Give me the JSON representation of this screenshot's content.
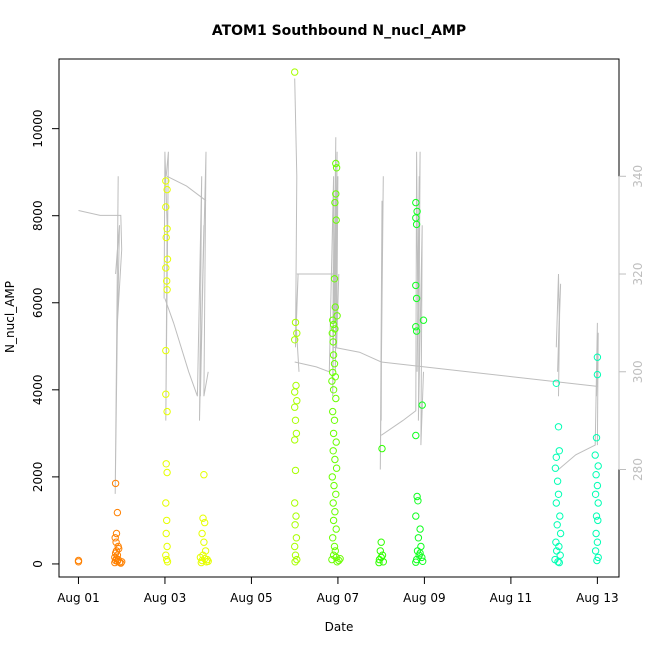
{
  "chart_data": {
    "type": "scatter",
    "title": "ATOM1 Southbound N_nucl_AMP",
    "xlabel": "Date",
    "ylabel": "N_nucl_AMP",
    "x_ticks": [
      "Aug 01",
      "Aug 03",
      "Aug 05",
      "Aug 07",
      "Aug 09",
      "Aug 11",
      "Aug 13"
    ],
    "x_tick_values": [
      1,
      3,
      5,
      7,
      9,
      11,
      13
    ],
    "xlim": [
      0.55,
      13.5
    ],
    "y_ticks": [
      0,
      2000,
      4000,
      6000,
      8000,
      10000
    ],
    "ylim": [
      -300,
      11600
    ],
    "y2_ticks": [
      280,
      300,
      320,
      340
    ],
    "y2lim": [
      258,
      364
    ],
    "y2_color": "#bebebe",
    "grid": false,
    "legend": "none",
    "series": [
      {
        "color": "#ff8000",
        "values": [
          [
            1.0,
            80
          ],
          [
            1.0,
            50
          ],
          [
            1.86,
            1850
          ],
          [
            1.9,
            1180
          ],
          [
            1.88,
            700
          ],
          [
            1.85,
            600
          ],
          [
            1.92,
            400
          ],
          [
            1.88,
            300
          ],
          [
            1.86,
            250
          ],
          [
            1.9,
            200
          ],
          [
            1.84,
            150
          ],
          [
            1.88,
            120
          ],
          [
            1.92,
            100
          ],
          [
            1.86,
            80
          ],
          [
            1.9,
            60
          ],
          [
            1.95,
            40
          ],
          [
            1.84,
            30
          ],
          [
            1.98,
            20
          ],
          [
            2.0,
            50
          ],
          [
            1.87,
            500
          ],
          [
            1.93,
            350
          ]
        ]
      },
      {
        "color": "#e6ff00",
        "values": [
          [
            3.02,
            8800
          ],
          [
            3.05,
            8600
          ],
          [
            3.02,
            8200
          ],
          [
            3.05,
            7700
          ],
          [
            3.03,
            7500
          ],
          [
            3.06,
            7000
          ],
          [
            3.02,
            6800
          ],
          [
            3.04,
            6500
          ],
          [
            3.05,
            6300
          ],
          [
            3.02,
            4900
          ],
          [
            3.02,
            3900
          ],
          [
            3.05,
            3500
          ],
          [
            3.03,
            2300
          ],
          [
            3.05,
            2100
          ],
          [
            3.02,
            1400
          ],
          [
            3.04,
            1000
          ],
          [
            3.03,
            700
          ],
          [
            3.05,
            400
          ],
          [
            3.02,
            200
          ],
          [
            3.04,
            100
          ],
          [
            3.06,
            50
          ],
          [
            3.9,
            2050
          ],
          [
            3.88,
            1050
          ],
          [
            3.92,
            950
          ],
          [
            3.86,
            700
          ],
          [
            3.9,
            500
          ],
          [
            3.94,
            300
          ],
          [
            3.88,
            200
          ],
          [
            3.92,
            120
          ],
          [
            3.86,
            80
          ],
          [
            3.96,
            50
          ],
          [
            3.84,
            30
          ],
          [
            3.98,
            100
          ],
          [
            3.82,
            150
          ],
          [
            4.0,
            60
          ]
        ]
      },
      {
        "color": "#a8ff00",
        "values": [
          [
            6.0,
            11300
          ],
          [
            6.02,
            5550
          ],
          [
            6.0,
            5150
          ],
          [
            6.05,
            5300
          ],
          [
            6.03,
            4100
          ],
          [
            6.0,
            3950
          ],
          [
            6.05,
            3750
          ],
          [
            6.0,
            3600
          ],
          [
            6.02,
            3300
          ],
          [
            6.04,
            3000
          ],
          [
            6.0,
            2850
          ],
          [
            6.02,
            2150
          ],
          [
            6.0,
            1400
          ],
          [
            6.03,
            1100
          ],
          [
            6.01,
            900
          ],
          [
            6.04,
            600
          ],
          [
            6.0,
            400
          ],
          [
            6.02,
            200
          ],
          [
            6.05,
            100
          ],
          [
            6.01,
            50
          ]
        ]
      },
      {
        "color": "#6aff00",
        "values": [
          [
            6.95,
            9200
          ],
          [
            6.97,
            9100
          ],
          [
            6.95,
            8500
          ],
          [
            6.93,
            8300
          ],
          [
            6.96,
            7900
          ],
          [
            6.92,
            6550
          ],
          [
            6.94,
            5900
          ],
          [
            6.98,
            5700
          ],
          [
            6.88,
            5600
          ],
          [
            6.9,
            5500
          ],
          [
            6.93,
            5400
          ],
          [
            6.87,
            5300
          ],
          [
            6.89,
            5100
          ],
          [
            6.9,
            4800
          ],
          [
            6.92,
            4600
          ],
          [
            6.88,
            4400
          ],
          [
            6.94,
            4300
          ],
          [
            6.86,
            4200
          ],
          [
            6.9,
            4000
          ],
          [
            6.95,
            3800
          ],
          [
            6.88,
            3500
          ],
          [
            6.92,
            3300
          ],
          [
            6.9,
            3000
          ],
          [
            6.96,
            2800
          ],
          [
            6.89,
            2600
          ],
          [
            6.93,
            2400
          ],
          [
            6.97,
            2200
          ],
          [
            6.87,
            2000
          ],
          [
            6.91,
            1800
          ],
          [
            6.95,
            1600
          ],
          [
            6.89,
            1400
          ],
          [
            6.93,
            1200
          ],
          [
            6.9,
            1000
          ],
          [
            6.96,
            800
          ],
          [
            6.88,
            600
          ],
          [
            6.92,
            400
          ],
          [
            6.94,
            300
          ],
          [
            6.9,
            200
          ],
          [
            6.96,
            150
          ],
          [
            6.86,
            100
          ],
          [
            6.98,
            50
          ],
          [
            7.02,
            80
          ],
          [
            7.05,
            120
          ]
        ]
      },
      {
        "color": "#30ff00",
        "values": [
          [
            8.02,
            2650
          ],
          [
            8.0,
            500
          ],
          [
            7.98,
            300
          ],
          [
            8.03,
            200
          ],
          [
            7.96,
            100
          ],
          [
            8.05,
            50
          ],
          [
            7.95,
            30
          ],
          [
            8.0,
            150
          ]
        ]
      },
      {
        "color": "#10ff20",
        "values": [
          [
            8.8,
            8300
          ],
          [
            8.83,
            8100
          ],
          [
            8.8,
            7950
          ],
          [
            8.82,
            7800
          ],
          [
            8.8,
            6400
          ],
          [
            8.82,
            6100
          ],
          [
            8.98,
            5600
          ],
          [
            8.8,
            5450
          ],
          [
            8.82,
            5350
          ],
          [
            8.95,
            3650
          ],
          [
            8.8,
            2950
          ],
          [
            8.83,
            1550
          ],
          [
            8.85,
            1450
          ],
          [
            8.8,
            1100
          ],
          [
            8.9,
            800
          ],
          [
            8.86,
            600
          ],
          [
            8.92,
            400
          ],
          [
            8.84,
            300
          ],
          [
            8.88,
            200
          ],
          [
            8.94,
            150
          ],
          [
            8.82,
            100
          ],
          [
            8.96,
            60
          ],
          [
            8.8,
            40
          ],
          [
            8.9,
            250
          ]
        ]
      },
      {
        "color": "#00ffb4",
        "values": [
          [
            12.05,
            4150
          ],
          [
            12.1,
            3150
          ],
          [
            12.12,
            2600
          ],
          [
            12.05,
            2450
          ],
          [
            12.03,
            2200
          ],
          [
            12.08,
            1900
          ],
          [
            12.1,
            1600
          ],
          [
            12.05,
            1400
          ],
          [
            12.13,
            1100
          ],
          [
            12.07,
            900
          ],
          [
            12.15,
            700
          ],
          [
            12.04,
            500
          ],
          [
            12.11,
            400
          ],
          [
            12.06,
            300
          ],
          [
            12.14,
            200
          ],
          [
            12.02,
            100
          ],
          [
            12.09,
            50
          ],
          [
            12.12,
            30
          ],
          [
            13.0,
            4750
          ],
          [
            13.0,
            4350
          ],
          [
            12.98,
            2900
          ],
          [
            12.95,
            2500
          ],
          [
            13.02,
            2250
          ],
          [
            12.97,
            2050
          ],
          [
            13.0,
            1800
          ],
          [
            12.96,
            1600
          ],
          [
            13.02,
            1400
          ],
          [
            12.98,
            1100
          ],
          [
            13.01,
            1000
          ],
          [
            12.97,
            700
          ],
          [
            13.0,
            500
          ],
          [
            12.96,
            300
          ],
          [
            13.02,
            150
          ],
          [
            12.99,
            80
          ]
        ]
      }
    ],
    "secondary_line": {
      "color": "#bebebe",
      "axis": "right",
      "segments": [
        [
          [
            1.0,
            333
          ],
          [
            1.5,
            332
          ],
          [
            1.98,
            332
          ],
          [
            2.0,
            325
          ],
          [
            1.9,
            310
          ],
          [
            1.85,
            275
          ],
          [
            1.92,
            340
          ],
          [
            1.88,
            300
          ],
          [
            1.95,
            330
          ],
          [
            1.86,
            320
          ],
          [
            1.9,
            325
          ]
        ],
        [
          [
            2.98,
            315
          ],
          [
            3.0,
            345
          ],
          [
            3.05,
            330
          ],
          [
            3.02,
            290
          ],
          [
            3.08,
            345
          ],
          [
            3.03,
            340
          ]
        ],
        [
          [
            3.0,
            315
          ],
          [
            3.2,
            310
          ],
          [
            3.55,
            300
          ],
          [
            3.75,
            295
          ],
          [
            3.85,
            340
          ],
          [
            3.8,
            290
          ],
          [
            3.9,
            330
          ],
          [
            3.82,
            295
          ],
          [
            3.88,
            320
          ],
          [
            3.95,
            345
          ],
          [
            3.9,
            295
          ],
          [
            4.0,
            300
          ]
        ],
        [
          [
            3.05,
            340
          ],
          [
            3.5,
            338
          ],
          [
            3.95,
            335
          ]
        ],
        [
          [
            6.0,
            360
          ],
          [
            6.05,
            340
          ],
          [
            6.02,
            305
          ],
          [
            6.08,
            320
          ],
          [
            6.03,
            310
          ],
          [
            6.1,
            300
          ]
        ],
        [
          [
            6.0,
            302
          ],
          [
            6.5,
            301
          ],
          [
            6.8,
            300
          ],
          [
            6.85,
            320
          ],
          [
            6.9,
            340
          ],
          [
            6.88,
            295
          ],
          [
            6.95,
            348
          ],
          [
            6.92,
            310
          ],
          [
            6.98,
            345
          ],
          [
            6.94,
            300
          ],
          [
            7.0,
            340
          ],
          [
            6.97,
            305
          ],
          [
            7.02,
            320
          ]
        ],
        [
          [
            6.05,
            320
          ],
          [
            6.9,
            320
          ]
        ],
        [
          [
            6.9,
            305
          ],
          [
            7.5,
            304
          ],
          [
            8.0,
            302
          ],
          [
            8.05,
            340
          ],
          [
            7.98,
            280
          ],
          [
            8.02,
            335
          ],
          [
            8.0,
            290
          ]
        ],
        [
          [
            8.0,
            287
          ],
          [
            8.5,
            290
          ],
          [
            8.8,
            292
          ],
          [
            8.82,
            345
          ],
          [
            8.85,
            310
          ],
          [
            8.88,
            340
          ],
          [
            8.83,
            300
          ],
          [
            8.9,
            345
          ],
          [
            8.86,
            290
          ],
          [
            8.95,
            330
          ],
          [
            8.92,
            285
          ],
          [
            8.98,
            300
          ]
        ],
        [
          [
            8.0,
            302
          ],
          [
            9.0,
            301
          ],
          [
            10.0,
            300
          ],
          [
            11.0,
            299
          ],
          [
            12.0,
            298
          ],
          [
            13.0,
            297
          ]
        ],
        [
          [
            12.05,
            305
          ],
          [
            12.1,
            320
          ],
          [
            12.12,
            310
          ],
          [
            12.15,
            318
          ],
          [
            12.08,
            300
          ],
          [
            12.13,
            315
          ],
          [
            12.1,
            295
          ]
        ],
        [
          [
            12.1,
            280
          ],
          [
            12.5,
            283
          ],
          [
            12.95,
            285
          ],
          [
            13.0,
            310
          ],
          [
            12.98,
            295
          ],
          [
            13.02,
            308
          ],
          [
            13.0,
            285
          ]
        ]
      ]
    }
  }
}
